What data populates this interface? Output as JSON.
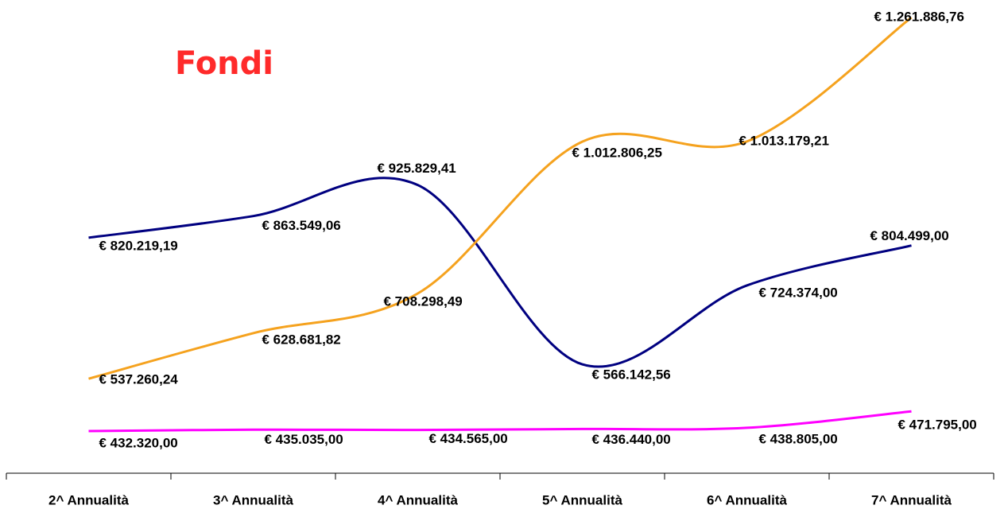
{
  "chart_data": {
    "type": "line",
    "title": "Fondi",
    "categories": [
      "2^ Annualità",
      "3^ Annualità",
      "4^ Annualità",
      "5^ Annualità",
      "6^ Annualità",
      "7^ Annualità"
    ],
    "series": [
      {
        "color": "#000080",
        "values": [
          820219.19,
          863549.06,
          925829.41,
          566142.56,
          724374.0,
          804499.0
        ],
        "value_labels": [
          "€ 820.219,19",
          "€ 863.549,06",
          "€ 925.829,41",
          "€ 566.142,56",
          "€ 724.374,00",
          "€ 804.499,00"
        ]
      },
      {
        "color": "#f5a21e",
        "values": [
          537260.24,
          628681.82,
          708298.49,
          1012806.25,
          1013179.21,
          1261886.76
        ],
        "value_labels": [
          "€ 537.260,24",
          "€ 628.681,82",
          "€ 708.298,49",
          "€ 1.012.806,25",
          "€ 1.013.179,21",
          "€ 1.261.886,76"
        ]
      },
      {
        "color": "#ff00ff",
        "values": [
          432320.0,
          435035.0,
          434565.0,
          436440.0,
          438805.0,
          471795.0
        ],
        "value_labels": [
          "€ 432.320,00",
          "€ 435.035,00",
          "€ 434.565,00",
          "€ 436.440,00",
          "€ 438.805,00",
          "€ 471.795,00"
        ]
      }
    ]
  }
}
